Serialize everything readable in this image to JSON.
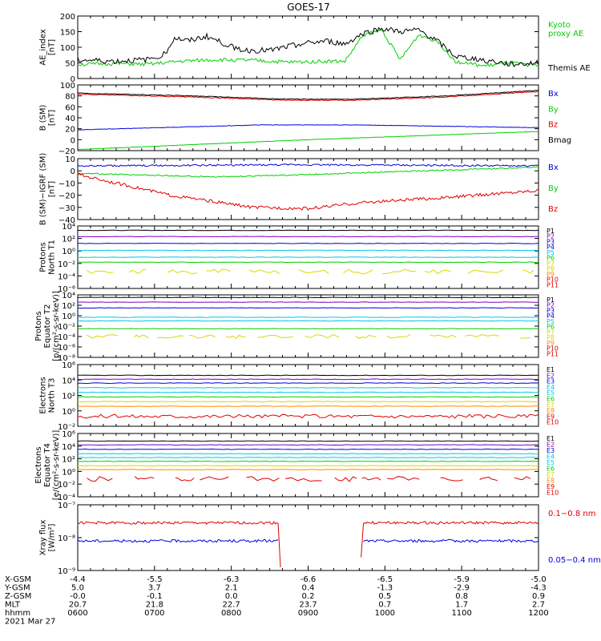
{
  "title": "GOES-17",
  "colors": {
    "black": "#000000",
    "red": "#e00000",
    "green": "#00d000",
    "blue": "#0000e0",
    "cyan": "#00c8e8",
    "yellow": "#d8d800",
    "orange": "#ff8c00",
    "purple": "#8000c0"
  },
  "footer": {
    "rows": [
      {
        "label": "X-GSM",
        "values": [
          "-4.4",
          "-5.5",
          "-6.3",
          "-6.6",
          "-6.5",
          "-5.9",
          "-5.0"
        ]
      },
      {
        "label": "Y-GSM",
        "values": [
          "5.0",
          "3.7",
          "2.1",
          "0.4",
          "-1.3",
          "-2.9",
          "-4.3"
        ]
      },
      {
        "label": "Z-GSM",
        "values": [
          "-0.0",
          "-0.1",
          "0.0",
          "0.2",
          "0.5",
          "0.8",
          "0.9"
        ]
      },
      {
        "label": "MLT",
        "values": [
          "20.7",
          "21.8",
          "22.7",
          "23.7",
          "0.7",
          "1.7",
          "2.7"
        ]
      },
      {
        "label": "hhmm",
        "values": [
          "0600",
          "0700",
          "0800",
          "0900",
          "1000",
          "1100",
          "1200"
        ]
      }
    ],
    "date": "2021 Mar 27"
  },
  "chart_data": [
    {
      "type": "line",
      "id": "ae",
      "ylabel": [
        "AE_index",
        "[nT]"
      ],
      "ylim": [
        0,
        200
      ],
      "ticks": [
        "0",
        "50",
        "100",
        "150",
        "200"
      ],
      "series": [
        {
          "name": "Kyoto proxy AE",
          "color": "green",
          "legend": [
            "Kyoto",
            "proxy AE"
          ],
          "kind": "noisy",
          "pts": [
            [
              0,
              45
            ],
            [
              0.08,
              48
            ],
            [
              0.15,
              45
            ],
            [
              0.22,
              55
            ],
            [
              0.3,
              60
            ],
            [
              0.38,
              58
            ],
            [
              0.46,
              52
            ],
            [
              0.52,
              55
            ],
            [
              0.58,
              55
            ],
            [
              0.62,
              140
            ],
            [
              0.66,
              155
            ],
            [
              0.7,
              60
            ],
            [
              0.74,
              140
            ],
            [
              0.78,
              120
            ],
            [
              0.82,
              55
            ],
            [
              0.88,
              40
            ],
            [
              0.94,
              50
            ],
            [
              1,
              40
            ]
          ],
          "amp": 6,
          "seed": 3
        },
        {
          "name": "Themis AE",
          "color": "black",
          "legend": [
            "Themis AE"
          ],
          "kind": "noisy",
          "pts": [
            [
              0,
              60
            ],
            [
              0.08,
              55
            ],
            [
              0.15,
              60
            ],
            [
              0.19,
              80
            ],
            [
              0.21,
              130
            ],
            [
              0.24,
              120
            ],
            [
              0.28,
              135
            ],
            [
              0.32,
              110
            ],
            [
              0.36,
              90
            ],
            [
              0.42,
              90
            ],
            [
              0.48,
              110
            ],
            [
              0.54,
              120
            ],
            [
              0.58,
              110
            ],
            [
              0.62,
              145
            ],
            [
              0.66,
              160
            ],
            [
              0.7,
              150
            ],
            [
              0.74,
              155
            ],
            [
              0.78,
              120
            ],
            [
              0.82,
              70
            ],
            [
              0.88,
              60
            ],
            [
              0.94,
              45
            ],
            [
              1,
              50
            ]
          ],
          "amp": 9,
          "seed": 7
        }
      ]
    },
    {
      "type": "line",
      "id": "bsm",
      "ylabel": [
        "B (SM)",
        "[nT]"
      ],
      "ylim": [
        -20,
        100
      ],
      "ticks": [
        "−20",
        "0",
        "20",
        "40",
        "60",
        "80",
        "100"
      ],
      "series": [
        {
          "name": "Bx",
          "color": "blue",
          "legend": [
            "Bx"
          ],
          "kind": "noisy",
          "pts": [
            [
              0,
              18
            ],
            [
              0.4,
              27
            ],
            [
              0.6,
              27
            ],
            [
              1,
              22
            ]
          ],
          "amp": 0.4,
          "seed": 11
        },
        {
          "name": "By",
          "color": "green",
          "legend": [
            "By"
          ],
          "kind": "noisy",
          "pts": [
            [
              0,
              -18
            ],
            [
              0.5,
              0
            ],
            [
              1,
              15
            ]
          ],
          "amp": 0.3,
          "seed": 12
        },
        {
          "name": "Bz",
          "color": "red",
          "legend": [
            "Bz"
          ],
          "kind": "noisy",
          "pts": [
            [
              0,
              83
            ],
            [
              0.25,
              78
            ],
            [
              0.45,
              72
            ],
            [
              0.6,
              72
            ],
            [
              0.8,
              78
            ],
            [
              1,
              88
            ]
          ],
          "amp": 0.8,
          "seed": 13
        },
        {
          "name": "Bmag",
          "color": "black",
          "legend": [
            "Bmag"
          ],
          "kind": "noisy",
          "pts": [
            [
              0,
              85
            ],
            [
              0.25,
              80
            ],
            [
              0.45,
              74
            ],
            [
              0.6,
              74
            ],
            [
              0.8,
              80
            ],
            [
              1,
              90
            ]
          ],
          "amp": 0.6,
          "seed": 14
        }
      ]
    },
    {
      "type": "line",
      "id": "bigrf",
      "ylabel": [
        "B (SM)−IGRF (SM)",
        "[nT]"
      ],
      "ylim": [
        -40,
        10
      ],
      "ticks": [
        "−40",
        "−30",
        "−20",
        "−10",
        "0",
        "10"
      ],
      "series": [
        {
          "name": "Bx",
          "color": "blue",
          "legend": [
            "Bx"
          ],
          "kind": "noisy",
          "pts": [
            [
              0,
              4
            ],
            [
              0.5,
              5
            ],
            [
              1,
              4
            ]
          ],
          "amp": 0.7,
          "seed": 21
        },
        {
          "name": "By",
          "color": "green",
          "legend": [
            "By"
          ],
          "kind": "noisy",
          "pts": [
            [
              0,
              -2
            ],
            [
              0.3,
              -5
            ],
            [
              0.5,
              -3
            ],
            [
              1,
              3
            ]
          ],
          "amp": 0.5,
          "seed": 22
        },
        {
          "name": "Bz",
          "color": "red",
          "legend": [
            "Bz"
          ],
          "kind": "noisy",
          "pts": [
            [
              0,
              -3
            ],
            [
              0.2,
              -20
            ],
            [
              0.38,
              -30
            ],
            [
              0.5,
              -31
            ],
            [
              0.62,
              -26
            ],
            [
              0.8,
              -22
            ],
            [
              1,
              -16
            ]
          ],
          "amp": 1.3,
          "seed": 23
        }
      ]
    },
    {
      "type": "line",
      "id": "pn",
      "ylabel": [
        "Protons",
        "North T1"
      ],
      "ylim": [
        -6,
        4
      ],
      "log": true,
      "ticks": [
        "10⁻⁶",
        "10⁻⁴",
        "10⁻²",
        "10⁰",
        "10²",
        "10⁴"
      ],
      "legend": [
        "P1",
        "P2",
        "P3",
        "P4",
        "P5",
        "P6",
        "P7",
        "P8",
        "P9",
        "P10",
        "P11"
      ],
      "legendColors": [
        "black",
        "purple",
        "blue",
        "blue",
        "cyan",
        "green",
        "yellow",
        "yellow",
        "orange",
        "red",
        "red"
      ],
      "series": [
        {
          "name": "P1",
          "color": "black",
          "kind": "flat",
          "y": 3.3
        },
        {
          "name": "P2",
          "color": "purple",
          "kind": "flat",
          "y": 2.3
        },
        {
          "name": "P3",
          "color": "blue",
          "kind": "flat",
          "y": 1.2
        },
        {
          "name": "P4",
          "color": "cyan",
          "kind": "flat",
          "y": 0.1
        },
        {
          "name": "P5",
          "color": "cyan",
          "kind": "flat",
          "y": -1
        },
        {
          "name": "P6",
          "color": "green",
          "kind": "flat",
          "y": -1.8
        },
        {
          "name": "P7",
          "color": "yellow",
          "kind": "frag",
          "y": -3.3
        }
      ]
    },
    {
      "type": "line",
      "id": "pe",
      "ylabel": [
        "Protons",
        "Equator T2",
        "[p/(cm²-s-sr-keV)]"
      ],
      "ylim": [
        -8,
        4
      ],
      "log": true,
      "ticks": [
        "10⁻⁸",
        "10⁻⁶",
        "10⁻⁴",
        "10⁻²",
        "10⁰",
        "10²",
        "10⁴"
      ],
      "legend": [
        "P1",
        "P2",
        "P3",
        "P4",
        "P5",
        "P6",
        "P7",
        "P8",
        "P9",
        "P10",
        "P11"
      ],
      "legendColors": [
        "black",
        "purple",
        "blue",
        "blue",
        "cyan",
        "green",
        "yellow",
        "yellow",
        "orange",
        "red",
        "red"
      ],
      "series": [
        {
          "name": "P1",
          "color": "black",
          "kind": "flat",
          "y": 3.5
        },
        {
          "name": "P2",
          "color": "purple",
          "kind": "flat",
          "y": 2.6
        },
        {
          "name": "P3",
          "color": "blue",
          "kind": "flat",
          "y": 1.5
        },
        {
          "name": "P4",
          "color": "cyan",
          "kind": "flat",
          "y": -0.3
        },
        {
          "name": "P5",
          "color": "cyan",
          "kind": "flat",
          "y": -1
        },
        {
          "name": "P6",
          "color": "green",
          "kind": "flat",
          "y": -2.5
        },
        {
          "name": "P7",
          "color": "yellow",
          "kind": "frag",
          "y": -4
        }
      ]
    },
    {
      "type": "line",
      "id": "en",
      "ylabel": [
        "Electrons",
        "North T3"
      ],
      "ylim": [
        -2,
        6
      ],
      "log": true,
      "ticks": [
        "10⁻²",
        "10⁰",
        "10²",
        "10⁴",
        "10⁶"
      ],
      "legend": [
        "E1",
        "E2",
        "E3",
        "E4",
        "E5",
        "E6",
        "E7",
        "E8",
        "E9",
        "E10"
      ],
      "legendColors": [
        "black",
        "purple",
        "blue",
        "cyan",
        "cyan",
        "green",
        "yellow",
        "orange",
        "red",
        "red"
      ],
      "series": [
        {
          "name": "E1",
          "color": "black",
          "kind": "flat",
          "y": 4.6
        },
        {
          "name": "E2",
          "color": "purple",
          "kind": "flat",
          "y": 4.1
        },
        {
          "name": "E3",
          "color": "blue",
          "kind": "flat",
          "y": 3.6
        },
        {
          "name": "E4",
          "color": "cyan",
          "kind": "flat",
          "y": 3.0
        },
        {
          "name": "E5",
          "color": "cyan",
          "kind": "flat",
          "y": 2.4
        },
        {
          "name": "E6",
          "color": "green",
          "kind": "flat",
          "y": 1.8
        },
        {
          "name": "E7",
          "color": "yellow",
          "kind": "flat",
          "y": 1.2
        },
        {
          "name": "E8",
          "color": "orange",
          "kind": "flat",
          "y": 0.6
        },
        {
          "name": "E9",
          "color": "red",
          "kind": "noisyflat",
          "y": -0.7
        }
      ]
    },
    {
      "type": "line",
      "id": "ee",
      "ylabel": [
        "Electrons",
        "Equator T4",
        "[e/(cm²-s-sr-keV)]"
      ],
      "ylim": [
        -4,
        6
      ],
      "log": true,
      "ticks": [
        "10⁻⁴",
        "10⁻²",
        "10⁰",
        "10²",
        "10⁴",
        "10⁶"
      ],
      "legend": [
        "E1",
        "E2",
        "E3",
        "E4",
        "E5",
        "E6",
        "E7",
        "E8",
        "E9",
        "E10"
      ],
      "legendColors": [
        "black",
        "purple",
        "blue",
        "cyan",
        "cyan",
        "green",
        "yellow",
        "orange",
        "red",
        "red"
      ],
      "series": [
        {
          "name": "E1",
          "color": "black",
          "kind": "flat",
          "y": 4.8
        },
        {
          "name": "E2",
          "color": "purple",
          "kind": "flat",
          "y": 4.2
        },
        {
          "name": "E3",
          "color": "blue",
          "kind": "flat",
          "y": 3.5
        },
        {
          "name": "E4",
          "color": "cyan",
          "kind": "flat",
          "y": 2.8
        },
        {
          "name": "E5",
          "color": "cyan",
          "kind": "flat",
          "y": 2.2
        },
        {
          "name": "E6",
          "color": "green",
          "kind": "flat",
          "y": 1.6
        },
        {
          "name": "E7",
          "color": "yellow",
          "kind": "flat",
          "y": 0.9
        },
        {
          "name": "E8",
          "color": "orange",
          "kind": "flat",
          "y": 0.3
        },
        {
          "name": "E9",
          "color": "red",
          "kind": "noisyfrag",
          "y": -1.2
        }
      ]
    },
    {
      "type": "line",
      "id": "xray",
      "ylabel": [
        "Xray flux",
        "[W/m²]"
      ],
      "ylim": [
        -9,
        -7
      ],
      "log": true,
      "ticks": [
        "10⁻⁹",
        "10⁻⁸",
        "10⁻⁷"
      ],
      "series": [
        {
          "name": "0.1-0.8 nm",
          "color": "red",
          "legend": [
            "0.1−0.8 nm"
          ],
          "kind": "xray",
          "y": -7.55
        },
        {
          "name": "0.05-0.4 nm",
          "color": "blue",
          "legend": [
            "0.05−0.4 nm"
          ],
          "kind": "xray",
          "y": -8.1
        }
      ]
    }
  ]
}
